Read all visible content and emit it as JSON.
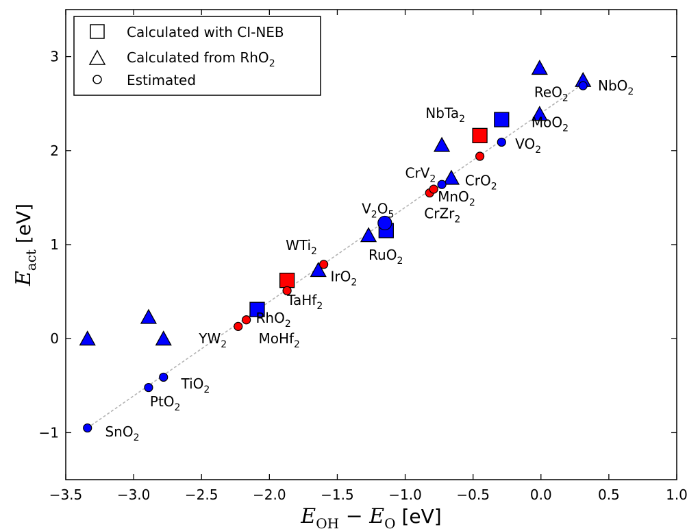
{
  "chart_data": {
    "type": "scatter",
    "xlabel_main": "E",
    "xlabel_sub1": "OH",
    "xlabel_sep": " − ",
    "xlabel_main2": "E",
    "xlabel_sub2": "O",
    "xlabel_unit": " [eV]",
    "ylabel_main": "E",
    "ylabel_sub": "act",
    "ylabel_unit": " [eV]",
    "xlim": [
      -3.5,
      1.0
    ],
    "ylim": [
      -1.5,
      3.5
    ],
    "xticks": [
      -3.5,
      -3.0,
      -2.5,
      -2.0,
      -1.5,
      -1.0,
      -0.5,
      0.0,
      0.5,
      1.0
    ],
    "xtick_labels": [
      "−3.5",
      "−3.0",
      "−2.5",
      "−2.0",
      "−1.5",
      "−1.0",
      "−0.5",
      "0.0",
      "0.5",
      "1.0"
    ],
    "yticks": [
      -1,
      0,
      1,
      2,
      3
    ],
    "ytick_labels": [
      "−1",
      "0",
      "1",
      "2",
      "3"
    ],
    "grid": false,
    "legend_position": "top-left",
    "legend": [
      {
        "marker": "square",
        "text": "Calculated with CI-NEB",
        "sub": "",
        "post": ""
      },
      {
        "marker": "triangle",
        "text": "Calculated from RhO",
        "sub": "2",
        "post": ""
      },
      {
        "marker": "circle",
        "text": "Estimated",
        "sub": "",
        "post": ""
      }
    ],
    "colors": {
      "blue": "#0000ff",
      "red": "#ff0000",
      "fit_line": "#b3b3b3"
    },
    "fit_line": {
      "x": [
        -3.34,
        0.32
      ],
      "y": [
        -0.95,
        2.72
      ]
    },
    "squares": [
      {
        "x": -2.09,
        "y": 0.31,
        "color": "blue"
      },
      {
        "x": -1.87,
        "y": 0.62,
        "color": "red"
      },
      {
        "x": -1.14,
        "y": 1.15,
        "color": "blue"
      },
      {
        "x": -0.45,
        "y": 2.16,
        "color": "red"
      },
      {
        "x": -0.29,
        "y": 2.33,
        "color": "blue"
      }
    ],
    "triangles": [
      {
        "x": -3.34,
        "y": -0.01
      },
      {
        "x": -2.89,
        "y": 0.22
      },
      {
        "x": -2.78,
        "y": -0.01
      },
      {
        "x": -1.64,
        "y": 0.72
      },
      {
        "x": -1.27,
        "y": 1.09
      },
      {
        "x": -0.73,
        "y": 2.05
      },
      {
        "x": -0.66,
        "y": 1.7
      },
      {
        "x": -0.01,
        "y": 2.87
      },
      {
        "x": -0.01,
        "y": 2.38
      },
      {
        "x": 0.31,
        "y": 2.74
      }
    ],
    "circles": [
      {
        "x": -3.34,
        "y": -0.95,
        "color": "blue",
        "size": "small"
      },
      {
        "x": -2.89,
        "y": -0.52,
        "color": "blue",
        "size": "small"
      },
      {
        "x": -2.78,
        "y": -0.41,
        "color": "blue",
        "size": "small"
      },
      {
        "x": -2.23,
        "y": 0.13,
        "color": "red",
        "size": "small"
      },
      {
        "x": -2.17,
        "y": 0.2,
        "color": "red",
        "size": "small"
      },
      {
        "x": -1.87,
        "y": 0.51,
        "color": "red",
        "size": "small"
      },
      {
        "x": -1.6,
        "y": 0.79,
        "color": "red",
        "size": "small"
      },
      {
        "x": -1.15,
        "y": 1.23,
        "color": "blue",
        "size": "large"
      },
      {
        "x": -0.82,
        "y": 1.55,
        "color": "red",
        "size": "small"
      },
      {
        "x": -0.79,
        "y": 1.59,
        "color": "red",
        "size": "small"
      },
      {
        "x": -0.73,
        "y": 1.64,
        "color": "blue",
        "size": "small"
      },
      {
        "x": -0.45,
        "y": 1.94,
        "color": "red",
        "size": "small"
      },
      {
        "x": -0.29,
        "y": 2.09,
        "color": "blue",
        "size": "small"
      },
      {
        "x": 0.31,
        "y": 2.69,
        "color": "blue",
        "size": "small"
      }
    ],
    "labels": [
      {
        "name": "SnO",
        "sub": "2",
        "post": "",
        "x": -3.21,
        "y": -1.04
      },
      {
        "name": "PtO",
        "sub": "2",
        "post": "",
        "x": -2.88,
        "y": -0.72
      },
      {
        "name": "TiO",
        "sub": "2",
        "post": "",
        "x": -2.65,
        "y": -0.53
      },
      {
        "name": "YW",
        "sub": "2",
        "post": "",
        "x": -2.52,
        "y": -0.05
      },
      {
        "name": "MoHf",
        "sub": "2",
        "post": "",
        "x": -2.08,
        "y": -0.05
      },
      {
        "name": "RhO",
        "sub": "2",
        "post": "",
        "x": -2.1,
        "y": 0.17
      },
      {
        "name": "TaHf",
        "sub": "2",
        "post": "",
        "x": -1.87,
        "y": 0.36
      },
      {
        "name": "IrO",
        "sub": "2",
        "post": "",
        "x": -1.55,
        "y": 0.61
      },
      {
        "name": "WTi",
        "sub": "2",
        "post": "",
        "x": -1.88,
        "y": 0.94
      },
      {
        "name": "RuO",
        "sub": "2",
        "post": "",
        "x": -1.27,
        "y": 0.84
      },
      {
        "name": "V",
        "sub": "2",
        "post": "O",
        "sub2": "5",
        "x": -1.32,
        "y": 1.33
      },
      {
        "name": "CrZr",
        "sub": "2",
        "post": "",
        "x": -0.86,
        "y": 1.28
      },
      {
        "name": "MnO",
        "sub": "2",
        "post": "",
        "x": -0.76,
        "y": 1.46
      },
      {
        "name": "CrO",
        "sub": "2",
        "post": "",
        "x": -0.56,
        "y": 1.63
      },
      {
        "name": "CrV",
        "sub": "2",
        "post": "",
        "x": -1.0,
        "y": 1.71
      },
      {
        "name": "VO",
        "sub": "2",
        "post": "",
        "x": -0.19,
        "y": 2.02
      },
      {
        "name": "MoO",
        "sub": "2",
        "post": "",
        "x": -0.07,
        "y": 2.25
      },
      {
        "name": "NbTa",
        "sub": "2",
        "post": "",
        "x": -0.85,
        "y": 2.35
      },
      {
        "name": "ReO",
        "sub": "2",
        "post": "",
        "x": -0.05,
        "y": 2.57
      },
      {
        "name": "NbO",
        "sub": "2",
        "post": "",
        "x": 0.42,
        "y": 2.64
      }
    ]
  }
}
